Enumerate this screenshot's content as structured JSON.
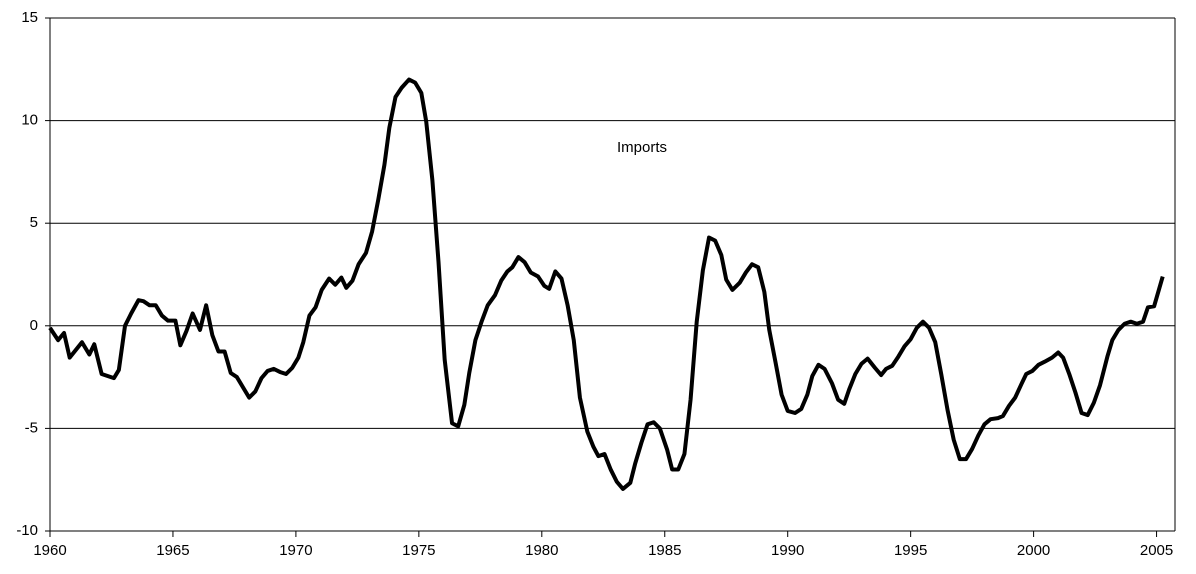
{
  "chart_data": {
    "type": "line",
    "x": [
      1960.0,
      1960.33,
      1960.57,
      1960.8,
      1961.3,
      1961.6,
      1961.8,
      1962.1,
      1962.6,
      1962.8,
      1963.05,
      1963.3,
      1963.6,
      1963.8,
      1964.05,
      1964.3,
      1964.55,
      1964.8,
      1965.1,
      1965.3,
      1965.55,
      1965.8,
      1966.1,
      1966.35,
      1966.6,
      1966.85,
      1967.1,
      1967.35,
      1967.6,
      1967.85,
      1968.1,
      1968.35,
      1968.6,
      1968.85,
      1969.1,
      1969.35,
      1969.6,
      1969.85,
      1970.1,
      1970.3,
      1970.55,
      1970.8,
      1971.05,
      1971.35,
      1971.6,
      1971.85,
      1972.05,
      1972.3,
      1972.55,
      1972.85,
      1973.1,
      1973.35,
      1973.6,
      1973.8,
      1974.05,
      1974.3,
      1974.6,
      1974.85,
      1975.1,
      1975.3,
      1975.55,
      1975.8,
      1976.05,
      1976.35,
      1976.6,
      1976.85,
      1977.05,
      1977.3,
      1977.55,
      1977.8,
      1978.1,
      1978.35,
      1978.6,
      1978.8,
      1979.05,
      1979.3,
      1979.55,
      1979.85,
      1980.1,
      1980.3,
      1980.55,
      1980.8,
      1981.05,
      1981.3,
      1981.55,
      1981.85,
      1982.1,
      1982.3,
      1982.55,
      1982.8,
      1983.05,
      1983.3,
      1983.6,
      1983.8,
      1984.05,
      1984.3,
      1984.55,
      1984.8,
      1985.1,
      1985.3,
      1985.55,
      1985.8,
      1986.05,
      1986.3,
      1986.55,
      1986.8,
      1987.05,
      1987.3,
      1987.5,
      1987.75,
      1988.05,
      1988.3,
      1988.55,
      1988.8,
      1989.05,
      1989.25,
      1989.5,
      1989.75,
      1990.0,
      1990.3,
      1990.55,
      1990.8,
      1991.0,
      1991.25,
      1991.5,
      1991.8,
      1992.05,
      1992.3,
      1992.5,
      1992.75,
      1993.0,
      1993.25,
      1993.55,
      1993.8,
      1994.0,
      1994.25,
      1994.5,
      1994.75,
      1995.0,
      1995.25,
      1995.5,
      1995.75,
      1996.0,
      1996.25,
      1996.5,
      1996.75,
      1997.0,
      1997.25,
      1997.5,
      1997.75,
      1998.0,
      1998.25,
      1998.55,
      1998.75,
      1999.0,
      1999.25,
      1999.5,
      1999.7,
      1999.95,
      2000.2,
      2000.45,
      2000.75,
      2001.0,
      2001.2,
      2001.45,
      2001.7,
      2001.95,
      2002.2,
      2002.45,
      2002.7,
      2003.0,
      2003.2,
      2003.45,
      2003.7,
      2003.95,
      2004.2,
      2004.45,
      2004.65,
      2004.9,
      2005.25
    ],
    "series": [
      {
        "name": "Imports",
        "color": "#000000",
        "values": [
          -0.1,
          -0.7,
          -0.35,
          -1.55,
          -0.8,
          -1.4,
          -0.9,
          -2.35,
          -2.55,
          -2.15,
          0,
          0.6,
          1.25,
          1.2,
          1.0,
          1.0,
          0.5,
          0.25,
          0.25,
          -0.95,
          -0.25,
          0.6,
          -0.2,
          1.0,
          -0.45,
          -1.25,
          -1.25,
          -2.3,
          -2.5,
          -3.0,
          -3.5,
          -3.2,
          -2.55,
          -2.2,
          -2.1,
          -2.25,
          -2.35,
          -2.05,
          -1.55,
          -0.8,
          0.5,
          0.9,
          1.75,
          2.3,
          2.0,
          2.35,
          1.85,
          2.2,
          3.0,
          3.55,
          4.6,
          6.15,
          7.85,
          9.65,
          11.15,
          11.6,
          12.0,
          11.85,
          11.35,
          9.95,
          7.1,
          3.1,
          -1.65,
          -4.75,
          -4.9,
          -3.85,
          -2.3,
          -0.7,
          0.2,
          1.0,
          1.5,
          2.2,
          2.65,
          2.85,
          3.35,
          3.1,
          2.6,
          2.4,
          1.95,
          1.8,
          2.65,
          2.3,
          1.0,
          -0.7,
          -3.5,
          -5.15,
          -5.9,
          -6.35,
          -6.25,
          -7.0,
          -7.6,
          -7.95,
          -7.65,
          -6.7,
          -5.7,
          -4.8,
          -4.7,
          -5.0,
          -6.05,
          -7.0,
          -7.0,
          -6.25,
          -3.6,
          0.2,
          2.7,
          4.3,
          4.15,
          3.45,
          2.25,
          1.75,
          2.1,
          2.6,
          3.0,
          2.85,
          1.65,
          -0.2,
          -1.75,
          -3.35,
          -4.15,
          -4.25,
          -4.05,
          -3.35,
          -2.45,
          -1.9,
          -2.1,
          -2.8,
          -3.6,
          -3.8,
          -3.1,
          -2.35,
          -1.85,
          -1.6,
          -2.05,
          -2.4,
          -2.1,
          -1.95,
          -1.5,
          -1.0,
          -0.65,
          -0.1,
          0.2,
          -0.1,
          -0.8,
          -2.4,
          -4.1,
          -5.55,
          -6.5,
          -6.5,
          -6.0,
          -5.35,
          -4.8,
          -4.55,
          -4.5,
          -4.4,
          -3.9,
          -3.5,
          -2.85,
          -2.35,
          -2.2,
          -1.9,
          -1.75,
          -1.55,
          -1.3,
          -1.55,
          -2.35,
          -3.25,
          -4.25,
          -4.35,
          -3.75,
          -2.9,
          -1.5,
          -0.7,
          -0.2,
          0.1,
          0.2,
          0.1,
          0.2,
          0.9,
          0.95,
          2.4
        ]
      }
    ],
    "xlim": [
      1960,
      2005.75
    ],
    "xticks": [
      1960,
      1965,
      1970,
      1975,
      1980,
      1985,
      1990,
      1995,
      2000,
      2005
    ],
    "ylim": [
      -10,
      15
    ],
    "yticks": [
      -10,
      -5,
      0,
      5,
      10,
      15
    ],
    "grid": true
  }
}
